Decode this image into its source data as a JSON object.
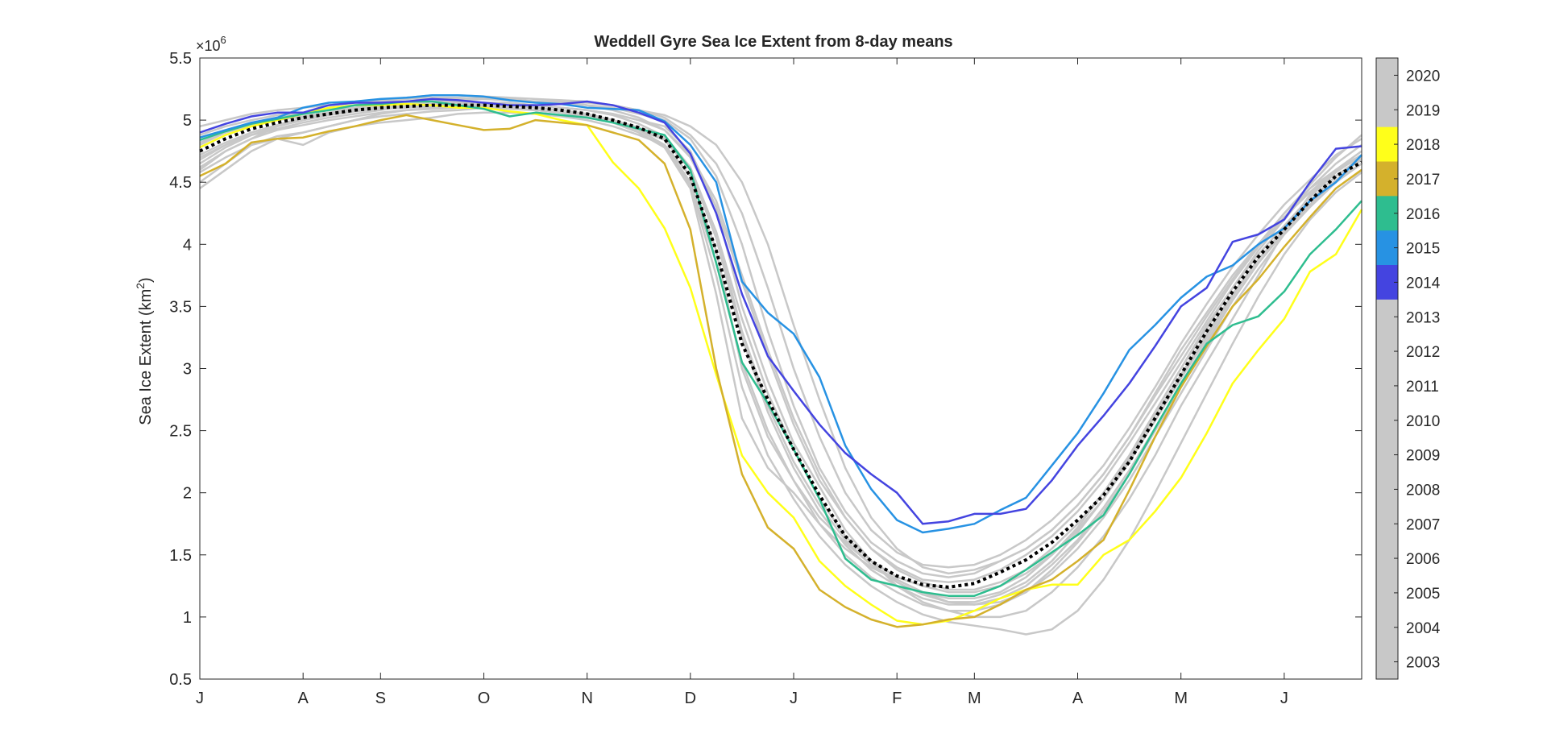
{
  "chart_data": {
    "type": "line",
    "title": "Weddell Gyre Sea Ice Extent from 8-day means",
    "ylabel": "Sea Ice Extent (km",
    "ylabel_sup": "2",
    "ylabel_close": ")",
    "exponent_base": "×10",
    "exponent_power": "6",
    "xlim": [
      0,
      360
    ],
    "ylim": [
      0.5,
      5.5
    ],
    "yticks": [
      {
        "value": 0.5,
        "label": "0.5"
      },
      {
        "value": 1,
        "label": "1"
      },
      {
        "value": 1.5,
        "label": "1.5"
      },
      {
        "value": 2,
        "label": "2"
      },
      {
        "value": 2.5,
        "label": "2.5"
      },
      {
        "value": 3,
        "label": "3"
      },
      {
        "value": 3.5,
        "label": "3.5"
      },
      {
        "value": 4,
        "label": "4"
      },
      {
        "value": 4.5,
        "label": "4.5"
      },
      {
        "value": 5,
        "label": "5"
      },
      {
        "value": 5.5,
        "label": "5.5"
      }
    ],
    "xticks": [
      {
        "value": 0,
        "label": "J"
      },
      {
        "value": 32,
        "label": "A"
      },
      {
        "value": 56,
        "label": "S"
      },
      {
        "value": 88,
        "label": "O"
      },
      {
        "value": 120,
        "label": "N"
      },
      {
        "value": 152,
        "label": "D"
      },
      {
        "value": 184,
        "label": "J"
      },
      {
        "value": 216,
        "label": "F"
      },
      {
        "value": 240,
        "label": "M"
      },
      {
        "value": 272,
        "label": "A"
      },
      {
        "value": 304,
        "label": "M"
      },
      {
        "value": 336,
        "label": "J"
      }
    ],
    "grid": false,
    "colorbar": {
      "labels": [
        "2020",
        "2019",
        "2018",
        "2017",
        "2016",
        "2015",
        "2014",
        "2013",
        "2012",
        "2011",
        "2010",
        "2009",
        "2008",
        "2007",
        "2006",
        "2005",
        "2004",
        "2003"
      ],
      "colors": [
        "#c8c8c8",
        "#c8c8c8",
        "#ffff1a",
        "#d4b12c",
        "#2ebd8f",
        "#2792e3",
        "#4444e0",
        "#c8c8c8",
        "#c8c8c8",
        "#c8c8c8",
        "#c8c8c8",
        "#c8c8c8",
        "#c8c8c8",
        "#c8c8c8",
        "#c8c8c8",
        "#c8c8c8",
        "#c8c8c8",
        "#c8c8c8"
      ]
    },
    "x": [
      0,
      8,
      16,
      24,
      32,
      40,
      48,
      56,
      64,
      72,
      80,
      88,
      96,
      104,
      112,
      120,
      128,
      136,
      144,
      152,
      160,
      168,
      176,
      184,
      192,
      200,
      208,
      216,
      224,
      232,
      240,
      248,
      256,
      264,
      272,
      280,
      288,
      296,
      304,
      312,
      320,
      328,
      336,
      344,
      352,
      360
    ],
    "series": [
      {
        "name": "2018",
        "color": "#ffff1a",
        "width": 2.5,
        "values": [
          4.78,
          4.88,
          4.95,
          5.0,
          5.05,
          5.1,
          5.12,
          5.12,
          5.13,
          5.12,
          5.1,
          5.1,
          5.07,
          5.05,
          5.0,
          4.96,
          4.66,
          4.45,
          4.13,
          3.65,
          2.95,
          2.3,
          2.0,
          1.8,
          1.45,
          1.25,
          1.1,
          0.97,
          0.94,
          0.97,
          1.05,
          1.15,
          1.22,
          1.26,
          1.26,
          1.5,
          1.62,
          1.85,
          2.12,
          2.48,
          2.88,
          3.15,
          3.4,
          3.78,
          3.92,
          4.28
        ]
      },
      {
        "name": "2017",
        "color": "#d4b12c",
        "width": 2.5,
        "values": [
          4.55,
          4.65,
          4.82,
          4.85,
          4.86,
          4.91,
          4.95,
          5.0,
          5.04,
          5.0,
          4.96,
          4.92,
          4.93,
          5.0,
          4.98,
          4.96,
          4.9,
          4.84,
          4.65,
          4.12,
          3.0,
          2.15,
          1.72,
          1.55,
          1.22,
          1.08,
          0.98,
          0.92,
          0.94,
          0.98,
          1.0,
          1.1,
          1.22,
          1.3,
          1.45,
          1.62,
          2.02,
          2.45,
          2.85,
          3.18,
          3.5,
          3.72,
          3.98,
          4.22,
          4.45,
          4.6
        ]
      },
      {
        "name": "2016",
        "color": "#2ebd8f",
        "width": 2.5,
        "values": [
          4.84,
          4.91,
          4.97,
          5.01,
          5.05,
          5.08,
          5.12,
          5.13,
          5.15,
          5.15,
          5.12,
          5.09,
          5.03,
          5.06,
          5.04,
          5.02,
          4.98,
          4.93,
          4.88,
          4.6,
          3.85,
          3.05,
          2.72,
          2.35,
          1.95,
          1.47,
          1.3,
          1.25,
          1.2,
          1.17,
          1.17,
          1.25,
          1.38,
          1.52,
          1.66,
          1.82,
          2.15,
          2.52,
          2.88,
          3.2,
          3.35,
          3.42,
          3.62,
          3.92,
          4.12,
          4.35
        ]
      },
      {
        "name": "2015",
        "color": "#2792e3",
        "width": 2.5,
        "values": [
          4.86,
          4.92,
          4.98,
          5.02,
          5.1,
          5.14,
          5.15,
          5.17,
          5.18,
          5.2,
          5.2,
          5.19,
          5.16,
          5.14,
          5.13,
          5.1,
          5.09,
          5.08,
          4.99,
          4.8,
          4.5,
          3.7,
          3.45,
          3.28,
          2.93,
          2.38,
          2.03,
          1.78,
          1.68,
          1.71,
          1.75,
          1.86,
          1.96,
          2.22,
          2.48,
          2.8,
          3.15,
          3.35,
          3.57,
          3.74,
          3.83,
          4.0,
          4.13,
          4.35,
          4.5,
          4.72
        ]
      },
      {
        "name": "2014",
        "color": "#4444e0",
        "width": 2.5,
        "values": [
          4.9,
          4.97,
          5.03,
          5.06,
          5.06,
          5.12,
          5.14,
          5.14,
          5.15,
          5.17,
          5.16,
          5.14,
          5.12,
          5.12,
          5.13,
          5.15,
          5.12,
          5.06,
          4.98,
          4.73,
          4.25,
          3.6,
          3.1,
          2.82,
          2.55,
          2.32,
          2.15,
          2.0,
          1.75,
          1.77,
          1.83,
          1.83,
          1.87,
          2.1,
          2.38,
          2.62,
          2.88,
          3.18,
          3.5,
          3.65,
          4.02,
          4.08,
          4.2,
          4.5,
          4.77,
          4.79
        ]
      },
      {
        "name": "mean",
        "color": "#000000",
        "width": 4,
        "dashed": true,
        "values": [
          4.75,
          4.85,
          4.93,
          4.98,
          5.02,
          5.05,
          5.08,
          5.1,
          5.11,
          5.12,
          5.12,
          5.12,
          5.11,
          5.1,
          5.08,
          5.05,
          5.0,
          4.94,
          4.85,
          4.55,
          3.95,
          3.2,
          2.75,
          2.35,
          1.98,
          1.65,
          1.45,
          1.33,
          1.26,
          1.24,
          1.27,
          1.36,
          1.46,
          1.6,
          1.78,
          1.98,
          2.25,
          2.6,
          2.95,
          3.3,
          3.62,
          3.9,
          4.12,
          4.35,
          4.55,
          4.66
        ]
      }
    ],
    "background_series": [
      {
        "name": "2003",
        "values": [
          4.6,
          4.75,
          4.85,
          4.95,
          5.0,
          5.05,
          5.08,
          5.1,
          5.12,
          5.12,
          5.12,
          5.12,
          5.1,
          5.08,
          5.06,
          5.02,
          4.98,
          4.9,
          4.78,
          4.45,
          3.6,
          2.6,
          2.2,
          2.0,
          1.75,
          1.55,
          1.4,
          1.3,
          1.2,
          1.15,
          1.15,
          1.2,
          1.32,
          1.5,
          1.72,
          2.0,
          2.3,
          2.65,
          3.0,
          3.35,
          3.65,
          3.95,
          4.2,
          4.45,
          4.65,
          4.8
        ]
      },
      {
        "name": "2004",
        "values": [
          4.45,
          4.6,
          4.75,
          4.85,
          4.9,
          4.95,
          5.0,
          5.05,
          5.08,
          5.1,
          5.12,
          5.14,
          5.14,
          5.12,
          5.1,
          5.08,
          5.05,
          5.0,
          4.95,
          4.75,
          4.3,
          3.5,
          2.9,
          2.4,
          2.05,
          1.7,
          1.45,
          1.25,
          1.12,
          1.05,
          1.0,
          1.0,
          1.05,
          1.2,
          1.4,
          1.65,
          1.95,
          2.3,
          2.7,
          3.05,
          3.4,
          3.75,
          4.1,
          4.4,
          4.6,
          4.75
        ]
      },
      {
        "name": "2005",
        "values": [
          4.7,
          4.8,
          4.88,
          4.93,
          4.98,
          5.02,
          5.05,
          5.08,
          5.12,
          5.15,
          5.17,
          5.18,
          5.17,
          5.15,
          5.15,
          5.12,
          5.1,
          5.05,
          5.0,
          4.85,
          4.55,
          4.0,
          3.3,
          2.7,
          2.2,
          1.85,
          1.6,
          1.45,
          1.35,
          1.32,
          1.35,
          1.45,
          1.55,
          1.7,
          1.9,
          2.15,
          2.45,
          2.8,
          3.15,
          3.45,
          3.75,
          4.0,
          4.25,
          4.45,
          4.6,
          4.7
        ]
      },
      {
        "name": "2006",
        "values": [
          4.5,
          4.65,
          4.8,
          4.85,
          4.8,
          4.9,
          4.95,
          4.98,
          5.0,
          5.02,
          5.05,
          5.06,
          5.06,
          5.05,
          5.03,
          5.0,
          4.95,
          4.88,
          4.8,
          4.55,
          3.95,
          3.0,
          2.45,
          2.1,
          1.8,
          1.6,
          1.42,
          1.3,
          1.2,
          1.12,
          1.1,
          1.12,
          1.2,
          1.38,
          1.6,
          1.85,
          2.15,
          2.5,
          2.85,
          3.2,
          3.55,
          3.85,
          4.1,
          4.35,
          4.55,
          4.7
        ]
      },
      {
        "name": "2007",
        "values": [
          4.8,
          4.9,
          4.97,
          5.02,
          5.05,
          5.08,
          5.1,
          5.12,
          5.13,
          5.15,
          5.16,
          5.17,
          5.16,
          5.15,
          5.14,
          5.12,
          5.08,
          5.02,
          4.92,
          4.7,
          4.3,
          3.7,
          3.1,
          2.55,
          2.1,
          1.8,
          1.55,
          1.4,
          1.3,
          1.28,
          1.3,
          1.38,
          1.5,
          1.65,
          1.85,
          2.1,
          2.4,
          2.72,
          3.05,
          3.38,
          3.7,
          3.98,
          4.22,
          4.42,
          4.6,
          4.72
        ]
      },
      {
        "name": "2008",
        "values": [
          4.65,
          4.78,
          4.88,
          4.95,
          5.0,
          5.04,
          5.08,
          5.1,
          5.11,
          5.12,
          5.13,
          5.13,
          5.12,
          5.1,
          5.08,
          5.05,
          5.0,
          4.92,
          4.8,
          4.5,
          3.85,
          3.05,
          2.5,
          2.1,
          1.75,
          1.5,
          1.32,
          1.2,
          1.1,
          1.05,
          1.05,
          1.1,
          1.2,
          1.35,
          1.55,
          1.8,
          2.1,
          2.45,
          2.8,
          3.15,
          3.5,
          3.8,
          4.08,
          4.3,
          4.5,
          4.65
        ]
      },
      {
        "name": "2009",
        "values": [
          4.95,
          5.0,
          5.05,
          5.08,
          5.1,
          5.12,
          5.14,
          5.16,
          5.18,
          5.2,
          5.2,
          5.19,
          5.18,
          5.17,
          5.16,
          5.15,
          5.12,
          5.08,
          5.02,
          4.88,
          4.65,
          4.25,
          3.65,
          3.0,
          2.45,
          2.0,
          1.7,
          1.52,
          1.42,
          1.4,
          1.42,
          1.5,
          1.62,
          1.78,
          1.98,
          2.22,
          2.52,
          2.85,
          3.2,
          3.52,
          3.82,
          4.08,
          4.32,
          4.52,
          4.72,
          4.85
        ]
      },
      {
        "name": "2010",
        "values": [
          4.72,
          4.82,
          4.9,
          4.96,
          5.02,
          5.06,
          5.1,
          5.12,
          5.14,
          5.15,
          5.15,
          5.14,
          5.13,
          5.12,
          5.1,
          5.08,
          5.04,
          4.97,
          4.87,
          4.62,
          4.1,
          3.3,
          2.7,
          2.25,
          1.9,
          1.62,
          1.42,
          1.28,
          1.18,
          1.12,
          1.12,
          1.18,
          1.28,
          1.45,
          1.68,
          1.95,
          2.28,
          2.62,
          2.95,
          3.28,
          3.6,
          3.88,
          4.12,
          4.35,
          4.55,
          4.68
        ]
      },
      {
        "name": "2011",
        "values": [
          4.58,
          4.7,
          4.8,
          4.87,
          4.9,
          4.95,
          5.0,
          5.03,
          5.05,
          5.07,
          5.08,
          5.1,
          5.1,
          5.08,
          5.06,
          5.03,
          4.98,
          4.9,
          4.78,
          4.48,
          3.75,
          2.85,
          2.3,
          1.95,
          1.65,
          1.42,
          1.25,
          1.12,
          1.02,
          0.96,
          0.93,
          0.9,
          0.86,
          0.9,
          1.05,
          1.3,
          1.62,
          2.0,
          2.4,
          2.8,
          3.2,
          3.58,
          3.92,
          4.2,
          4.42,
          4.58
        ]
      },
      {
        "name": "2012",
        "values": [
          4.88,
          4.95,
          5.0,
          5.04,
          5.06,
          5.09,
          5.12,
          5.15,
          5.17,
          5.18,
          5.18,
          5.17,
          5.16,
          5.15,
          5.15,
          5.14,
          5.12,
          5.08,
          5.04,
          4.95,
          4.8,
          4.5,
          4.0,
          3.35,
          2.75,
          2.2,
          1.8,
          1.55,
          1.4,
          1.35,
          1.38,
          1.45,
          1.55,
          1.7,
          1.9,
          2.15,
          2.45,
          2.78,
          3.1,
          3.42,
          3.72,
          4.0,
          4.25,
          4.48,
          4.7,
          4.88
        ]
      },
      {
        "name": "2013",
        "values": [
          4.68,
          4.8,
          4.9,
          4.96,
          5.0,
          5.04,
          5.07,
          5.09,
          5.1,
          5.11,
          5.11,
          5.11,
          5.1,
          5.08,
          5.06,
          5.03,
          4.98,
          4.92,
          4.84,
          4.6,
          4.05,
          3.25,
          2.65,
          2.2,
          1.85,
          1.58,
          1.38,
          1.25,
          1.15,
          1.1,
          1.1,
          1.15,
          1.25,
          1.42,
          1.62,
          1.88,
          2.18,
          2.52,
          2.88,
          3.22,
          3.55,
          3.85,
          4.1,
          4.32,
          4.52,
          4.65
        ]
      },
      {
        "name": "2019",
        "values": [
          4.82,
          4.9,
          4.96,
          5.0,
          5.03,
          5.06,
          5.09,
          5.11,
          5.12,
          5.13,
          5.14,
          5.14,
          5.13,
          5.12,
          5.1,
          5.08,
          5.05,
          5.0,
          4.92,
          4.72,
          4.35,
          3.75,
          3.15,
          2.6,
          2.15,
          1.8,
          1.55,
          1.38,
          1.28,
          1.22,
          1.22,
          1.28,
          1.38,
          1.55,
          1.75,
          2.0,
          2.3,
          2.65,
          3.0,
          3.32,
          3.65,
          3.92,
          4.15,
          4.38,
          4.58,
          4.72
        ]
      },
      {
        "name": "2020",
        "values": [
          4.62,
          4.75,
          4.85,
          4.92,
          4.96,
          5.0,
          5.03,
          5.06,
          5.08,
          5.09,
          5.1,
          5.1,
          5.09,
          5.08,
          5.06,
          5.04,
          5.0,
          4.94,
          4.85,
          4.6,
          4.1,
          3.4,
          2.8,
          2.35,
          1.95,
          1.65,
          1.45,
          1.32,
          1.25,
          1.2,
          1.2,
          1.25,
          1.35,
          1.5,
          1.7,
          1.95,
          2.25,
          2.58,
          2.92,
          3.25,
          3.58,
          3.88,
          4.12,
          4.35,
          4.55,
          4.68
        ]
      }
    ],
    "background_color": "#c8c8c8"
  }
}
